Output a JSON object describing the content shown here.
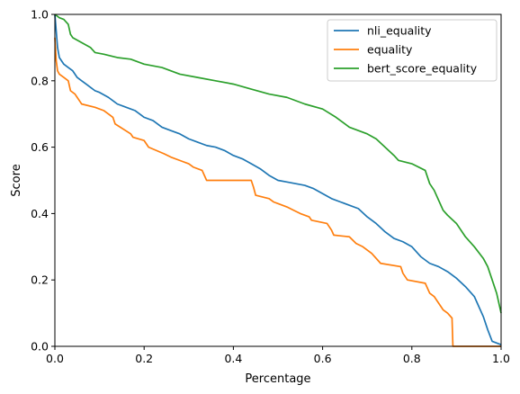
{
  "chart_data": {
    "type": "line",
    "xlabel": "Percentage",
    "ylabel": "Score",
    "xlim": [
      0,
      1
    ],
    "ylim": [
      0,
      1
    ],
    "xticks": [
      "0.0",
      "0.2",
      "0.4",
      "0.6",
      "0.8",
      "1.0"
    ],
    "yticks": [
      "0.0",
      "0.2",
      "0.4",
      "0.6",
      "0.8",
      "1.0"
    ],
    "grid": false,
    "legend_position": "top-right",
    "series": [
      {
        "name": "nli_equality",
        "color": "#1f77b4",
        "points": [
          [
            0.0,
            1.0
          ],
          [
            0.003,
            0.95
          ],
          [
            0.006,
            0.9
          ],
          [
            0.01,
            0.87
          ],
          [
            0.02,
            0.85
          ],
          [
            0.03,
            0.84
          ],
          [
            0.04,
            0.83
          ],
          [
            0.05,
            0.81
          ],
          [
            0.06,
            0.8
          ],
          [
            0.07,
            0.79
          ],
          [
            0.08,
            0.78
          ],
          [
            0.09,
            0.77
          ],
          [
            0.1,
            0.765
          ],
          [
            0.12,
            0.75
          ],
          [
            0.14,
            0.73
          ],
          [
            0.16,
            0.72
          ],
          [
            0.18,
            0.71
          ],
          [
            0.2,
            0.69
          ],
          [
            0.22,
            0.68
          ],
          [
            0.24,
            0.66
          ],
          [
            0.26,
            0.65
          ],
          [
            0.28,
            0.64
          ],
          [
            0.3,
            0.625
          ],
          [
            0.32,
            0.615
          ],
          [
            0.34,
            0.605
          ],
          [
            0.36,
            0.6
          ],
          [
            0.38,
            0.59
          ],
          [
            0.4,
            0.575
          ],
          [
            0.42,
            0.565
          ],
          [
            0.44,
            0.55
          ],
          [
            0.46,
            0.535
          ],
          [
            0.48,
            0.515
          ],
          [
            0.5,
            0.5
          ],
          [
            0.52,
            0.495
          ],
          [
            0.54,
            0.49
          ],
          [
            0.56,
            0.485
          ],
          [
            0.58,
            0.475
          ],
          [
            0.6,
            0.46
          ],
          [
            0.62,
            0.445
          ],
          [
            0.64,
            0.435
          ],
          [
            0.66,
            0.425
          ],
          [
            0.68,
            0.415
          ],
          [
            0.7,
            0.39
          ],
          [
            0.72,
            0.37
          ],
          [
            0.74,
            0.345
          ],
          [
            0.76,
            0.325
          ],
          [
            0.78,
            0.315
          ],
          [
            0.8,
            0.3
          ],
          [
            0.82,
            0.27
          ],
          [
            0.84,
            0.25
          ],
          [
            0.86,
            0.24
          ],
          [
            0.88,
            0.225
          ],
          [
            0.9,
            0.205
          ],
          [
            0.92,
            0.18
          ],
          [
            0.94,
            0.15
          ],
          [
            0.95,
            0.12
          ],
          [
            0.96,
            0.09
          ],
          [
            0.97,
            0.05
          ],
          [
            0.98,
            0.015
          ],
          [
            1.0,
            0.005
          ]
        ]
      },
      {
        "name": "equality",
        "color": "#ff7f0e",
        "points": [
          [
            0.0,
            0.93
          ],
          [
            0.003,
            0.86
          ],
          [
            0.006,
            0.83
          ],
          [
            0.01,
            0.82
          ],
          [
            0.02,
            0.81
          ],
          [
            0.03,
            0.8
          ],
          [
            0.035,
            0.77
          ],
          [
            0.045,
            0.76
          ],
          [
            0.05,
            0.75
          ],
          [
            0.055,
            0.74
          ],
          [
            0.06,
            0.73
          ],
          [
            0.09,
            0.72
          ],
          [
            0.11,
            0.71
          ],
          [
            0.13,
            0.69
          ],
          [
            0.135,
            0.67
          ],
          [
            0.17,
            0.64
          ],
          [
            0.175,
            0.63
          ],
          [
            0.2,
            0.62
          ],
          [
            0.21,
            0.6
          ],
          [
            0.245,
            0.58
          ],
          [
            0.26,
            0.57
          ],
          [
            0.28,
            0.56
          ],
          [
            0.3,
            0.55
          ],
          [
            0.31,
            0.54
          ],
          [
            0.33,
            0.53
          ],
          [
            0.34,
            0.5
          ],
          [
            0.44,
            0.5
          ],
          [
            0.445,
            0.48
          ],
          [
            0.45,
            0.455
          ],
          [
            0.48,
            0.445
          ],
          [
            0.49,
            0.435
          ],
          [
            0.5,
            0.43
          ],
          [
            0.52,
            0.42
          ],
          [
            0.535,
            0.41
          ],
          [
            0.55,
            0.4
          ],
          [
            0.57,
            0.39
          ],
          [
            0.575,
            0.38
          ],
          [
            0.61,
            0.37
          ],
          [
            0.62,
            0.35
          ],
          [
            0.625,
            0.335
          ],
          [
            0.66,
            0.33
          ],
          [
            0.675,
            0.31
          ],
          [
            0.69,
            0.3
          ],
          [
            0.71,
            0.28
          ],
          [
            0.73,
            0.25
          ],
          [
            0.775,
            0.24
          ],
          [
            0.78,
            0.22
          ],
          [
            0.79,
            0.2
          ],
          [
            0.83,
            0.19
          ],
          [
            0.84,
            0.16
          ],
          [
            0.85,
            0.15
          ],
          [
            0.86,
            0.13
          ],
          [
            0.87,
            0.11
          ],
          [
            0.88,
            0.1
          ],
          [
            0.89,
            0.085
          ],
          [
            0.892,
            0.0
          ],
          [
            1.0,
            0.0
          ]
        ]
      },
      {
        "name": "bert_score_equality",
        "color": "#2ca02c",
        "points": [
          [
            0.0,
            1.0
          ],
          [
            0.01,
            0.99
          ],
          [
            0.02,
            0.985
          ],
          [
            0.03,
            0.97
          ],
          [
            0.035,
            0.94
          ],
          [
            0.04,
            0.93
          ],
          [
            0.06,
            0.915
          ],
          [
            0.08,
            0.9
          ],
          [
            0.09,
            0.885
          ],
          [
            0.11,
            0.88
          ],
          [
            0.14,
            0.87
          ],
          [
            0.17,
            0.865
          ],
          [
            0.2,
            0.85
          ],
          [
            0.24,
            0.84
          ],
          [
            0.28,
            0.82
          ],
          [
            0.32,
            0.81
          ],
          [
            0.36,
            0.8
          ],
          [
            0.4,
            0.79
          ],
          [
            0.44,
            0.775
          ],
          [
            0.48,
            0.76
          ],
          [
            0.52,
            0.75
          ],
          [
            0.56,
            0.73
          ],
          [
            0.6,
            0.715
          ],
          [
            0.63,
            0.69
          ],
          [
            0.66,
            0.66
          ],
          [
            0.7,
            0.64
          ],
          [
            0.72,
            0.625
          ],
          [
            0.74,
            0.6
          ],
          [
            0.76,
            0.575
          ],
          [
            0.77,
            0.56
          ],
          [
            0.8,
            0.55
          ],
          [
            0.83,
            0.53
          ],
          [
            0.84,
            0.49
          ],
          [
            0.85,
            0.47
          ],
          [
            0.86,
            0.44
          ],
          [
            0.87,
            0.41
          ],
          [
            0.88,
            0.395
          ],
          [
            0.9,
            0.37
          ],
          [
            0.92,
            0.33
          ],
          [
            0.94,
            0.3
          ],
          [
            0.96,
            0.265
          ],
          [
            0.97,
            0.24
          ],
          [
            0.98,
            0.2
          ],
          [
            0.99,
            0.16
          ],
          [
            1.0,
            0.1
          ]
        ]
      }
    ]
  }
}
